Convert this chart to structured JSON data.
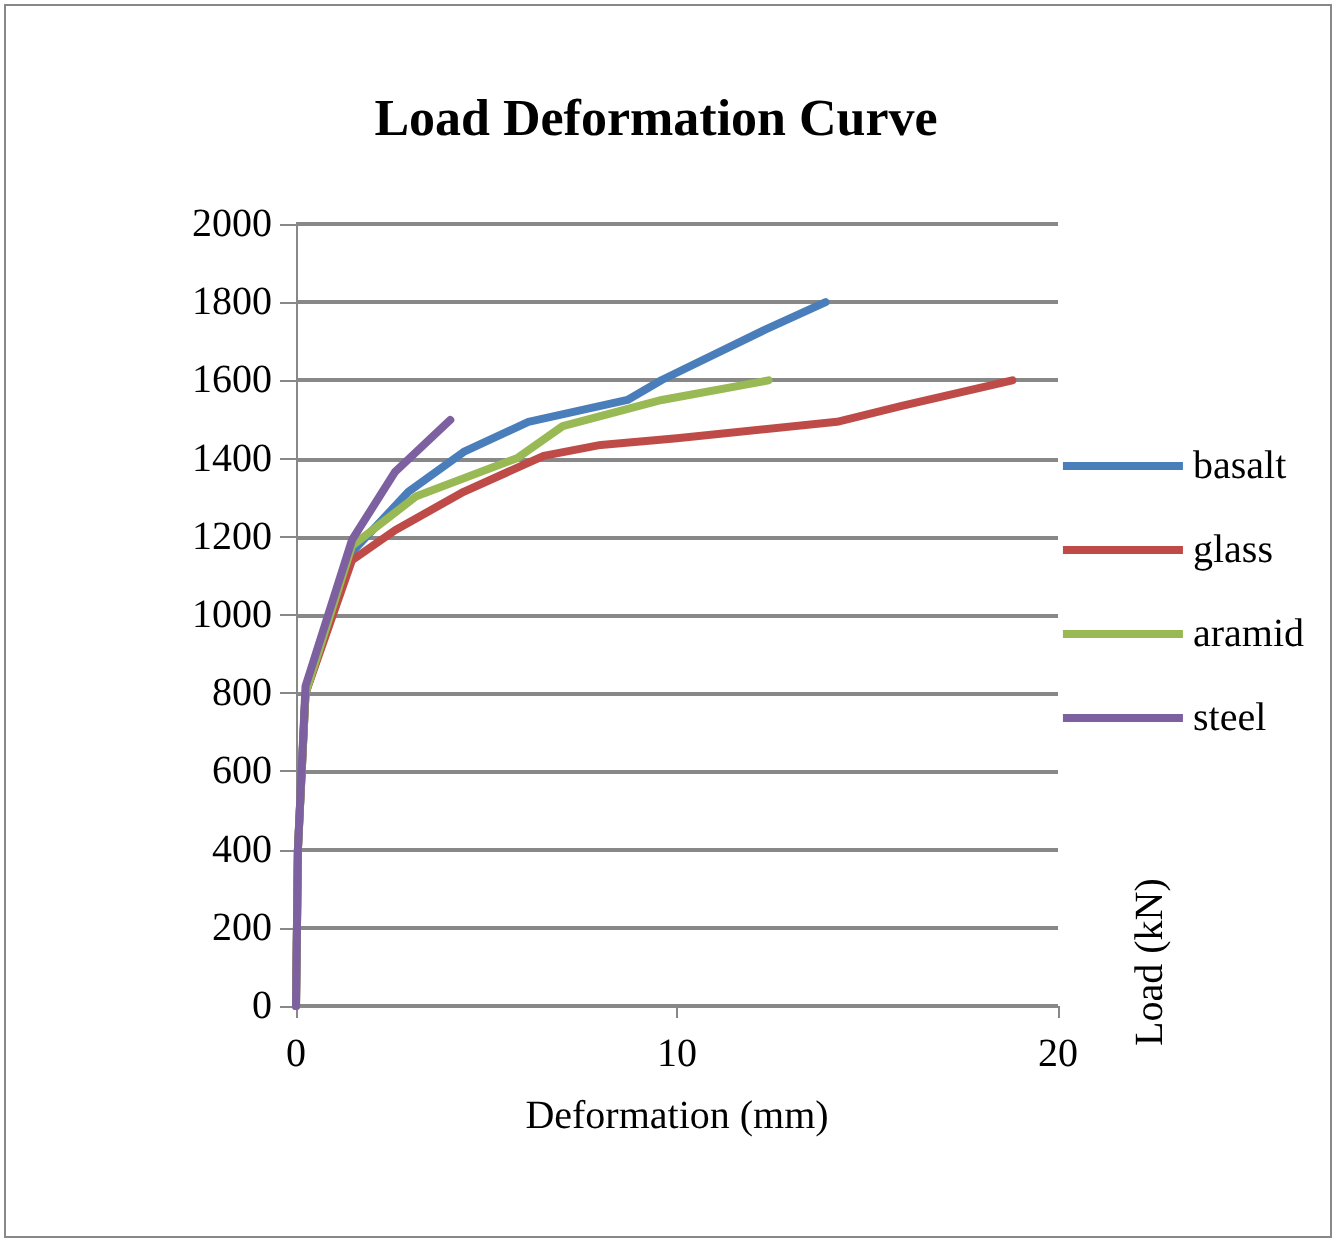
{
  "chart_data": {
    "type": "line",
    "title": "Load Deformation Curve",
    "xlabel": "Deformation (mm)",
    "ylabel": "Load (kN)",
    "xlim": [
      0,
      20
    ],
    "xticks": [
      0,
      10,
      20
    ],
    "ylim": [
      0,
      2000
    ],
    "yticks": [
      0,
      200,
      400,
      600,
      800,
      1000,
      1200,
      1400,
      1600,
      1800,
      2000
    ],
    "grid": "y",
    "legend": "right",
    "marker": "none",
    "line_style": "solid",
    "series": [
      {
        "name": "basalt",
        "color": "#4a7ebb",
        "x": [
          0,
          0.05,
          0.25,
          1.47,
          2.95,
          4.4,
          6.1,
          8.7,
          9.6,
          12.3,
          13.9
        ],
        "values": [
          0,
          400,
          800,
          1161,
          1315,
          1417,
          1494,
          1550,
          1601,
          1729,
          1800
        ]
      },
      {
        "name": "glass",
        "color": "#be4b48",
        "x": [
          0,
          0.05,
          0.25,
          1.47,
          2.6,
          4.4,
          6.5,
          8,
          10,
          14.2,
          15.9,
          18.8
        ],
        "values": [
          0,
          400,
          800,
          1140,
          1217,
          1315,
          1407,
          1435,
          1452,
          1494,
          1535,
          1600
        ]
      },
      {
        "name": "aramid",
        "color": "#98b954",
        "x": [
          0,
          0.05,
          0.25,
          1.47,
          3.16,
          5.8,
          7,
          9.6,
          12.4
        ],
        "values": [
          0,
          400,
          800,
          1177,
          1304,
          1401,
          1483,
          1550,
          1600
        ]
      },
      {
        "name": "steel",
        "color": "#7d60a0",
        "x": [
          0,
          0.05,
          0.25,
          1.47,
          2.6,
          4.05
        ],
        "values": [
          0,
          400,
          818,
          1192,
          1366,
          1499
        ]
      }
    ]
  }
}
